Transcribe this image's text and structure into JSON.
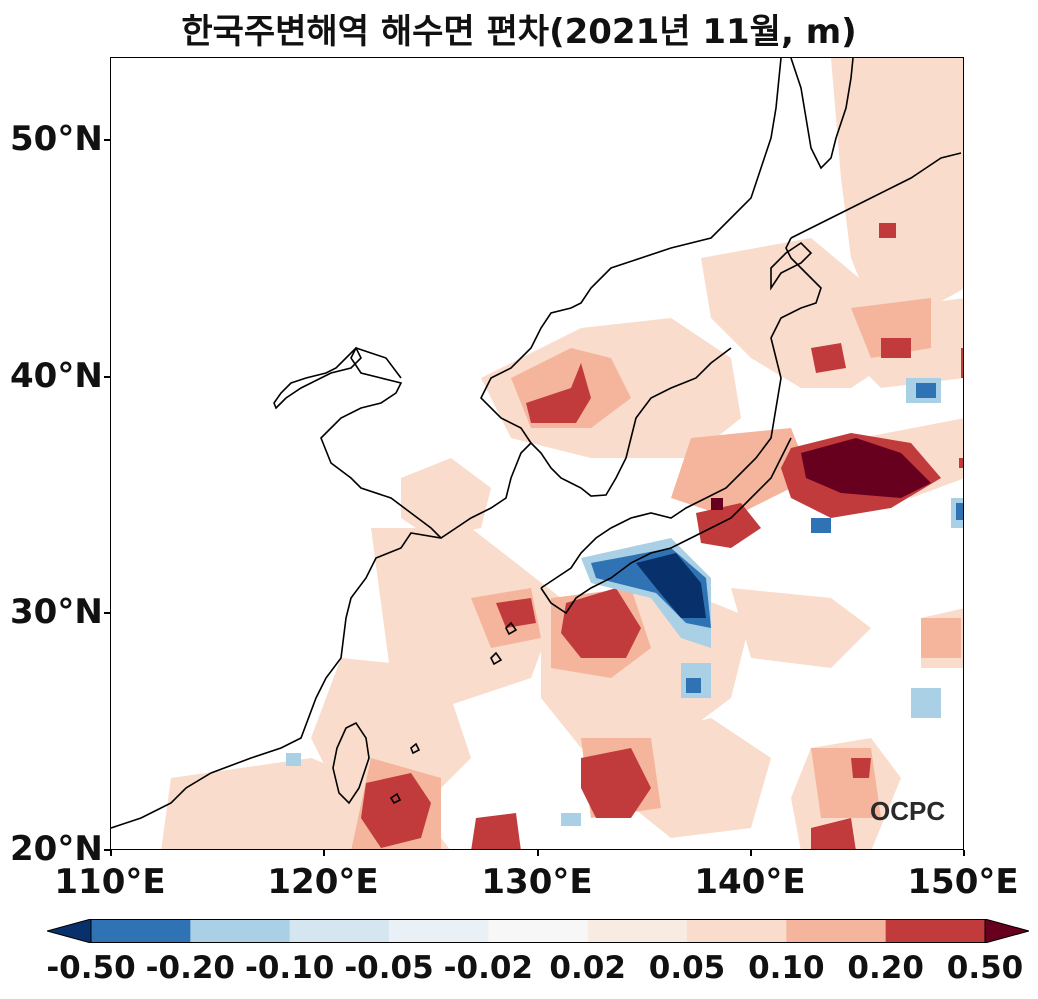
{
  "title": "한국주변해역 해수면 편차(2021년 11월, m)",
  "y_axis": {
    "ticks": [
      "20°N",
      "30°N",
      "40°N",
      "50°N"
    ]
  },
  "x_axis": {
    "ticks": [
      "110°E",
      "120°E",
      "130°E",
      "140°E",
      "150°E"
    ]
  },
  "watermark": "OCPC",
  "colorbar": {
    "labels": [
      "-0.50",
      "-0.20",
      "-0.10",
      "-0.05",
      "-0.02",
      "0.02",
      "0.05",
      "0.10",
      "0.20",
      "0.50"
    ],
    "colors": [
      "#08306b",
      "#2f73b5",
      "#a9d0e5",
      "#d5e6f0",
      "#eaf1f6",
      "#f7f7f7",
      "#f8ece2",
      "#f9dccb",
      "#f4b59c",
      "#c13a3c",
      "#67001f"
    ]
  },
  "chart_data": {
    "type": "map",
    "title": "한국주변해역 해수면 편차(2021년 11월, m)",
    "variable": "sea level anomaly",
    "units": "m",
    "lon_range": [
      110,
      150
    ],
    "lat_range": [
      20,
      53.4
    ],
    "colorbar_levels": [
      -0.5,
      -0.2,
      -0.1,
      -0.05,
      -0.02,
      0.02,
      0.05,
      0.1,
      0.2,
      0.5
    ]
  }
}
